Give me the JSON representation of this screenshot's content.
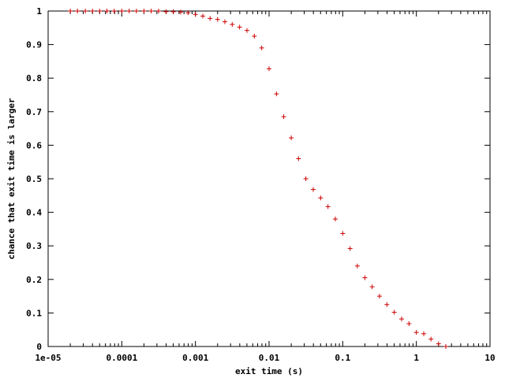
{
  "chart_data": {
    "type": "scatter",
    "title": "",
    "xlabel": "exit time (s)",
    "ylabel": "chance that exit time is larger",
    "x_scale": "log",
    "xlim": [
      1e-05,
      10
    ],
    "ylim": [
      0,
      1
    ],
    "x_ticks": [
      1e-05,
      0.0001,
      0.001,
      0.01,
      0.1,
      1,
      10
    ],
    "x_tick_labels": [
      "1e-05",
      "0.0001",
      "0.001",
      "0.01",
      "0.1",
      "1",
      "10"
    ],
    "y_ticks": [
      0,
      0.1,
      0.2,
      0.3,
      0.4,
      0.5,
      0.6,
      0.7,
      0.8,
      0.9,
      1
    ],
    "y_tick_labels": [
      "0",
      "0.1",
      "0.2",
      "0.3",
      "0.4",
      "0.5",
      "0.6",
      "0.7",
      "0.8",
      "0.9",
      "1"
    ],
    "marker": "plus",
    "marker_color": "#cc0000",
    "grid": false,
    "legend": "none",
    "series": [
      {
        "x": [
          2e-05,
          2.5e-05,
          3.2e-05,
          4e-05,
          5e-05,
          6.3e-05,
          7.9e-05,
          0.0001,
          0.000126,
          0.000158,
          0.0002,
          0.000251,
          0.000316,
          0.000398,
          0.000501,
          0.000631,
          0.000794,
          0.001,
          0.00126,
          0.00158,
          0.002,
          0.00251,
          0.00316,
          0.00398,
          0.00501,
          0.00631,
          0.00794,
          0.01,
          0.0126,
          0.0158,
          0.02,
          0.0251,
          0.0316,
          0.0398,
          0.0501,
          0.0631,
          0.0794,
          0.1,
          0.126,
          0.158,
          0.2,
          0.251,
          0.316,
          0.398,
          0.501,
          0.631,
          0.794,
          1,
          1.26,
          1.58,
          2,
          2.51
        ],
        "y": [
          1,
          1,
          1,
          1,
          1,
          1,
          1,
          1,
          1,
          1,
          1,
          1,
          1,
          0.998,
          0.998,
          0.997,
          0.995,
          0.99,
          0.985,
          0.978,
          0.975,
          0.968,
          0.96,
          0.952,
          0.942,
          0.925,
          0.89,
          0.828,
          0.753,
          0.685,
          0.622,
          0.56,
          0.5,
          0.468,
          0.443,
          0.417,
          0.38,
          0.337,
          0.292,
          0.24,
          0.205,
          0.178,
          0.15,
          0.125,
          0.102,
          0.082,
          0.068,
          0.042,
          0.038,
          0.022,
          0.008,
          0
        ]
      }
    ]
  }
}
